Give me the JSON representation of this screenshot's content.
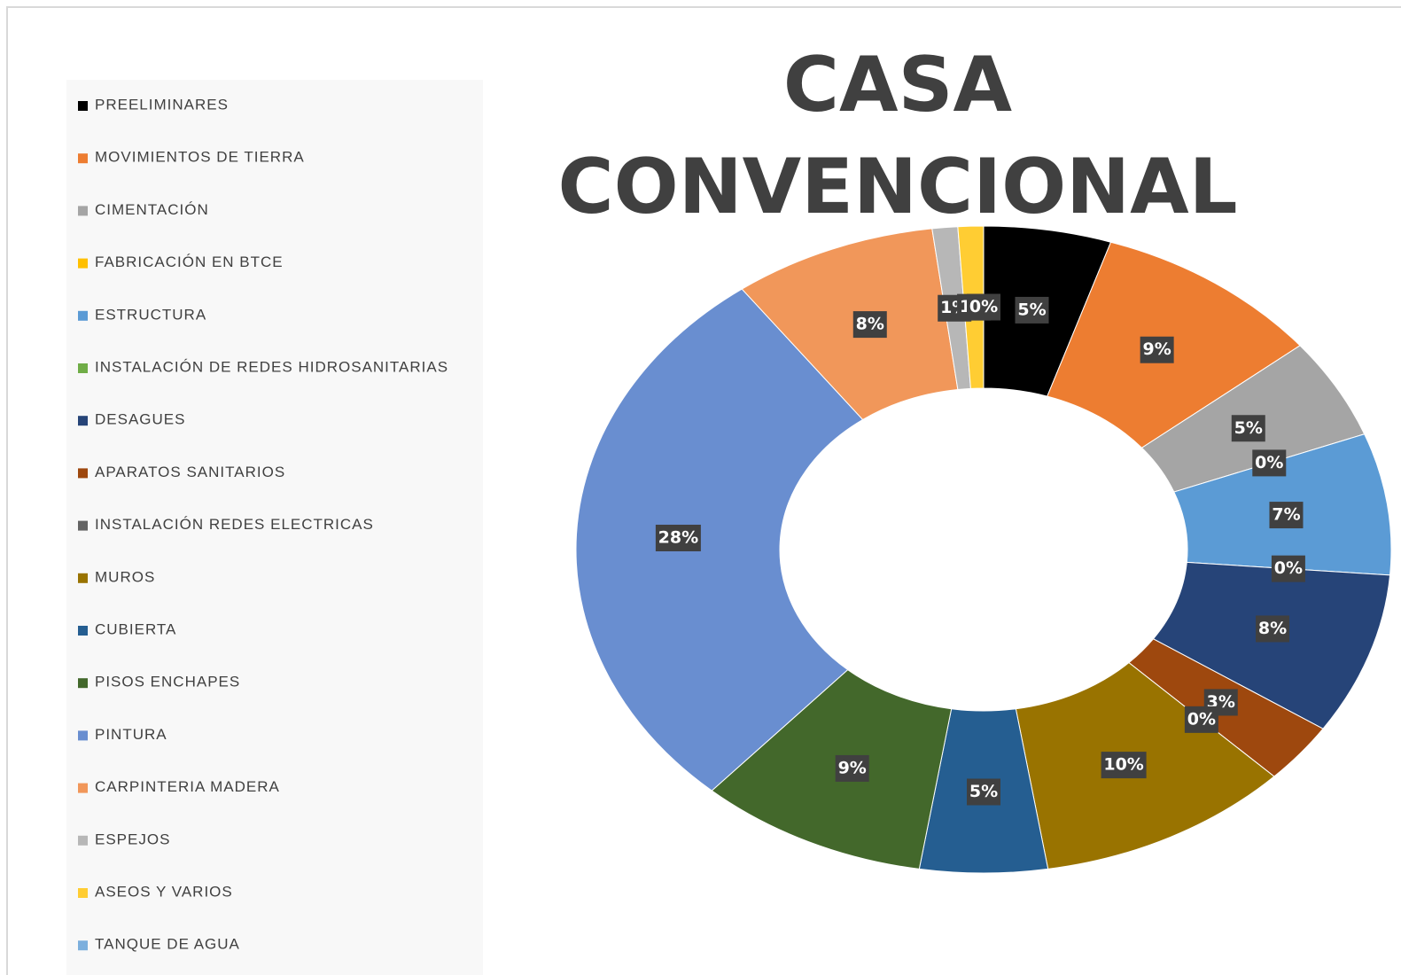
{
  "chart_data": {
    "type": "donut",
    "title": "CASA CONVENCIONAL",
    "categories": [
      "PREELIMINARES",
      "MOVIMIENTOS DE TIERRA",
      "CIMENTACIÓN",
      "FABRICACIÓN EN BTCE",
      "ESTRUCTURA",
      "INSTALACIÓN DE REDES HIDROSANITARIAS",
      "DESAGUES",
      "APARATOS SANITARIOS",
      "INSTALACIÓN REDES ELECTRICAS",
      "MUROS",
      "CUBIERTA",
      "PISOS ENCHAPES",
      "PINTURA",
      "CARPINTERIA MADERA",
      "ESPEJOS",
      "ASEOS Y VARIOS",
      "TANQUE DE AGUA"
    ],
    "values": [
      5,
      9,
      5,
      0,
      7,
      0,
      8,
      3,
      0,
      10,
      5,
      9,
      28,
      8,
      1,
      1,
      0
    ],
    "value_labels": [
      "5%",
      "9%",
      "5%",
      "0%",
      "7%",
      "0%",
      "8%",
      "3%",
      "0%",
      "10%",
      "5%",
      "9%",
      "28%",
      "8%",
      "1%",
      "1%",
      "0%"
    ],
    "colors": [
      "#000000",
      "#ed7d31",
      "#a5a5a5",
      "#ffc000",
      "#5b9bd5",
      "#70ad47",
      "#264478",
      "#9e480e",
      "#636363",
      "#997300",
      "#255e91",
      "#43682b",
      "#698ed0",
      "#f1975a",
      "#b7b7b7",
      "#ffcd33",
      "#7cafdd"
    ],
    "legend": "left"
  }
}
